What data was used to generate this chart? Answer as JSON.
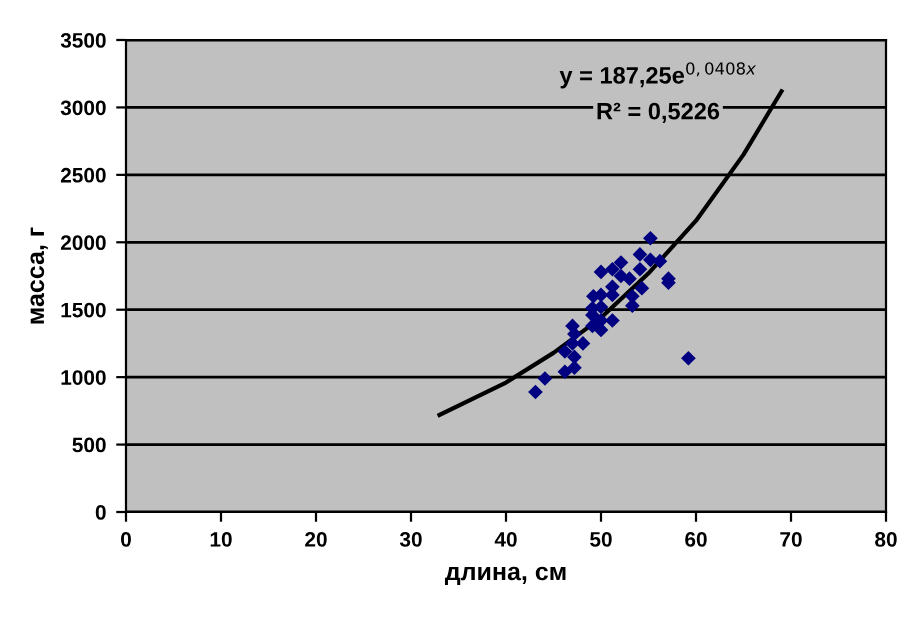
{
  "chart_data": {
    "type": "scatter",
    "xlabel": "длина, см",
    "ylabel": "масса, г",
    "xlim": [
      0,
      80
    ],
    "xticks": [
      0,
      10,
      20,
      30,
      40,
      50,
      60,
      70,
      80
    ],
    "ylim": [
      0,
      3500
    ],
    "yticks": [
      0,
      500,
      1000,
      1500,
      2000,
      2500,
      3000,
      3500
    ],
    "grid": "y",
    "legend": false,
    "annotations": [
      "y = 187,25e$^{0,0408x}$",
      "R² = 0,5226"
    ],
    "series": [
      {
        "color": "#000080",
        "marker": "diamond",
        "x": [
          55.2,
          54.1,
          52.1,
          51.2,
          50.0,
          52.1,
          53.0,
          54.1,
          55.2,
          56.2,
          57.1,
          57.1,
          51.2,
          50.0,
          49.2,
          51.2,
          53.3,
          53.3,
          54.3,
          49.1,
          50.0,
          49.1,
          50.0,
          51.2,
          49.1,
          47.0,
          50.0,
          48.1,
          47.0,
          47.2,
          46.2,
          47.2,
          46.2,
          47.2,
          44.1,
          43.1,
          59.2
        ],
        "values": [
          2030,
          1910,
          1850,
          1800,
          1780,
          1750,
          1730,
          1800,
          1870,
          1860,
          1730,
          1700,
          1670,
          1610,
          1600,
          1610,
          1600,
          1530,
          1660,
          1510,
          1520,
          1460,
          1420,
          1420,
          1380,
          1380,
          1350,
          1250,
          1250,
          1320,
          1190,
          1150,
          1040,
          1070,
          990,
          890,
          1140
        ]
      },
      {
        "type": "line",
        "color": "#000000",
        "line_style": "solid",
        "x": [
          33,
          40,
          45,
          50,
          55,
          60,
          65,
          69
        ],
        "values": [
          720,
          960,
          1180,
          1440,
          1770,
          2160,
          2650,
          3120
        ]
      }
    ]
  }
}
